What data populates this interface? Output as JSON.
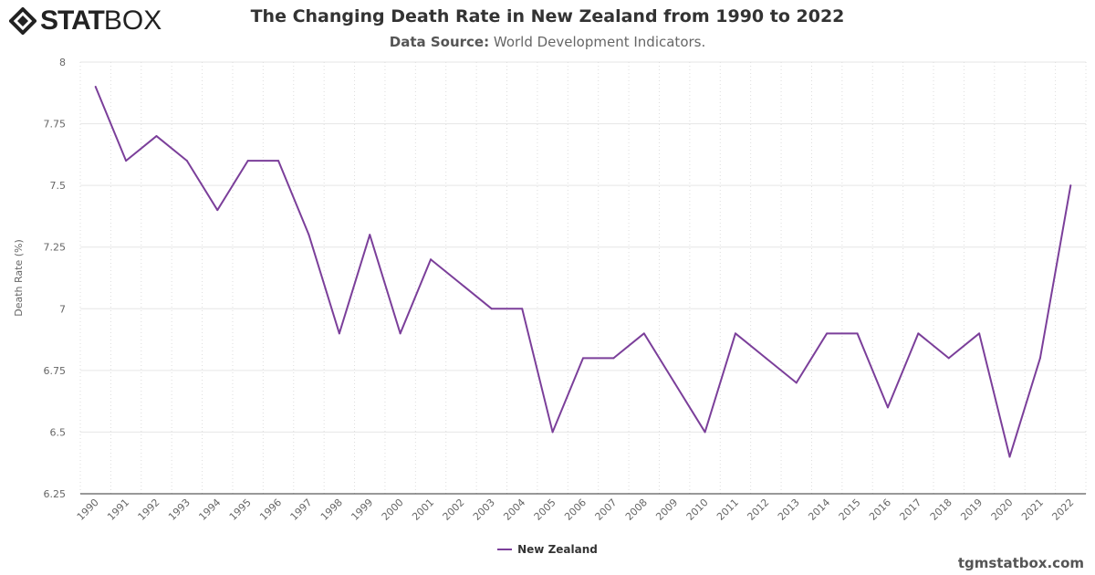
{
  "logo": {
    "bold": "STAT",
    "light": "BOX"
  },
  "header": {
    "title": "The Changing Death Rate in New Zealand from 1990 to 2022",
    "source_label": "Data Source:",
    "source_value": "World Development Indicators."
  },
  "credit": "tgmstatbox.com",
  "chart_data": {
    "type": "line",
    "title": "The Changing Death Rate in New Zealand from 1990 to 2022",
    "ylabel": "Death Rate (%)",
    "xlabel": "",
    "ylim": [
      6.25,
      8
    ],
    "yticks": [
      "6.25",
      "6.5",
      "6.75",
      "7",
      "7.25",
      "7.5",
      "7.75",
      "8"
    ],
    "grid": true,
    "legend": "bottom-center",
    "categories": [
      "1990",
      "1991",
      "1992",
      "1993",
      "1994",
      "1995",
      "1996",
      "1997",
      "1998",
      "1999",
      "2000",
      "2001",
      "2002",
      "2003",
      "2004",
      "2005",
      "2006",
      "2007",
      "2008",
      "2009",
      "2010",
      "2011",
      "2012",
      "2013",
      "2014",
      "2015",
      "2016",
      "2017",
      "2018",
      "2019",
      "2020",
      "2021",
      "2022"
    ],
    "series": [
      {
        "name": "New Zealand",
        "color": "#7b3f9a",
        "values": [
          7.9,
          7.6,
          7.7,
          7.6,
          7.4,
          7.6,
          7.6,
          7.3,
          6.9,
          7.3,
          6.9,
          7.2,
          7.1,
          7.0,
          7.0,
          6.5,
          6.8,
          6.8,
          6.9,
          6.7,
          6.5,
          6.9,
          6.8,
          6.7,
          6.9,
          6.9,
          6.6,
          6.9,
          6.8,
          6.9,
          6.4,
          6.8,
          7.5
        ]
      }
    ]
  }
}
